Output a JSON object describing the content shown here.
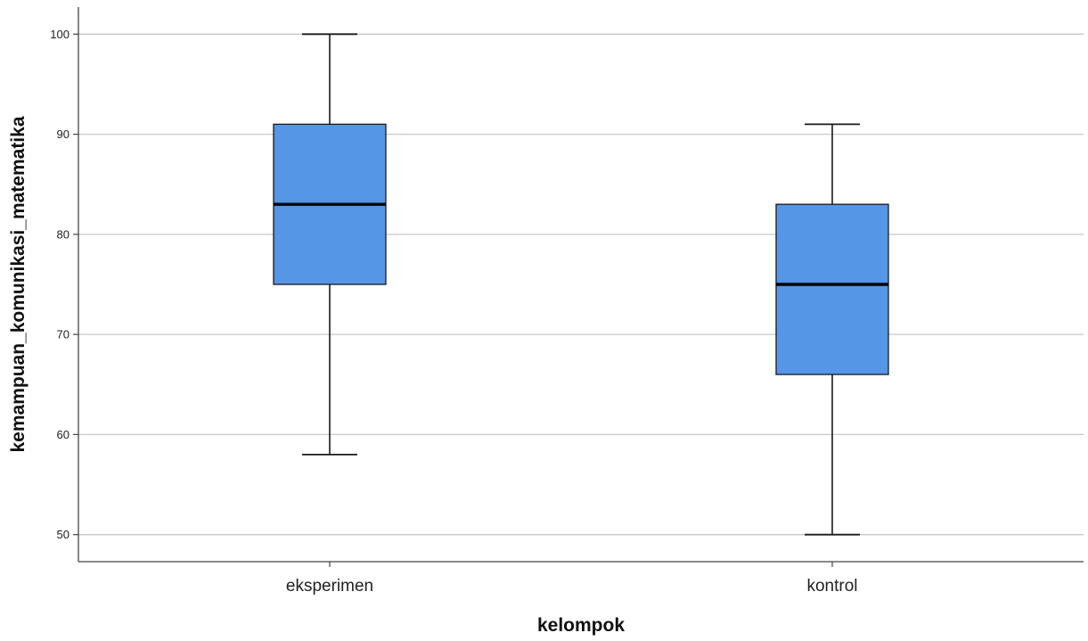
{
  "chart_data": {
    "type": "boxplot",
    "xlabel": "kelompok",
    "ylabel": "kemampuan_komunikasi_matematika",
    "ylim": [
      47.3,
      102.7
    ],
    "yticks": [
      50,
      60,
      70,
      80,
      90,
      100
    ],
    "grid": true,
    "colors": {
      "box_fill": "#5596E6",
      "box_stroke": "#1a1a1a",
      "grid": "#c8c8c8",
      "axis": "#444444"
    },
    "categories": [
      "eksperimen",
      "kontrol"
    ],
    "boxes": [
      {
        "category": "eksperimen",
        "min": 58,
        "q1": 75,
        "median": 83,
        "q3": 91,
        "max": 100
      },
      {
        "category": "kontrol",
        "min": 50,
        "q1": 66,
        "median": 75,
        "q3": 83,
        "max": 91
      }
    ]
  }
}
